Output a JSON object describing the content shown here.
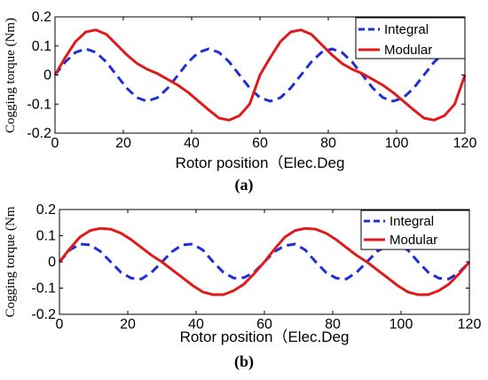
{
  "chart_data": [
    {
      "type": "line",
      "panel": "(a)",
      "xlabel": "Rotor position（Elec.Deg",
      "ylabel": "Cogging torque (Nm)",
      "xlim": [
        0,
        120
      ],
      "ylim": [
        -0.2,
        0.2
      ],
      "xticks": [
        "0",
        "20",
        "40",
        "60",
        "80",
        "100",
        "120"
      ],
      "yticks": [
        "0.2",
        "0.1",
        "0",
        "-0.1",
        "-0.2"
      ],
      "xtick_values": [
        0,
        20,
        40,
        60,
        80,
        100,
        120
      ],
      "ytick_values": [
        0.2,
        0.1,
        0,
        -0.1,
        -0.2
      ],
      "grid": false,
      "legend_position": "top-right",
      "x": [
        0,
        3,
        6,
        9,
        12,
        15,
        18,
        21,
        24,
        27,
        30,
        33,
        36,
        39,
        42,
        45,
        48,
        51,
        54,
        57,
        60,
        63,
        66,
        69,
        72,
        75,
        78,
        81,
        84,
        87,
        90,
        93,
        96,
        99,
        102,
        105,
        108,
        111,
        114,
        117,
        120
      ],
      "series": [
        {
          "name": "Integral",
          "color": "#1f2fd6",
          "style": "dashed",
          "values": [
            0,
            0.045,
            0.078,
            0.09,
            0.078,
            0.045,
            0,
            -0.045,
            -0.078,
            -0.09,
            -0.078,
            -0.045,
            0,
            0.045,
            0.078,
            0.09,
            0.078,
            0.045,
            0,
            -0.045,
            -0.078,
            -0.09,
            -0.078,
            -0.045,
            0,
            0.045,
            0.078,
            0.09,
            0.078,
            0.045,
            0,
            -0.045,
            -0.078,
            -0.09,
            -0.078,
            -0.045,
            0,
            0.045,
            0.078,
            0.09,
            0.078
          ]
        },
        {
          "name": "Modular",
          "color": "#e01a1a",
          "style": "solid",
          "values": [
            0,
            0.06,
            0.115,
            0.148,
            0.155,
            0.14,
            0.105,
            0.07,
            0.04,
            0.02,
            0.005,
            -0.015,
            -0.035,
            -0.06,
            -0.09,
            -0.12,
            -0.148,
            -0.155,
            -0.14,
            -0.1,
            0,
            0.06,
            0.115,
            0.148,
            0.155,
            0.14,
            0.105,
            0.07,
            0.04,
            0.02,
            0.005,
            -0.015,
            -0.035,
            -0.06,
            -0.09,
            -0.12,
            -0.148,
            -0.155,
            -0.14,
            -0.1,
            0
          ]
        }
      ]
    },
    {
      "type": "line",
      "panel": "(b)",
      "xlabel": "Rotor position（Elec.Deg",
      "ylabel": "Cogging torque (Nm",
      "xlim": [
        0,
        120
      ],
      "ylim": [
        -0.2,
        0.2
      ],
      "xticks": [
        "0",
        "20",
        "40",
        "60",
        "80",
        "100",
        "120"
      ],
      "yticks": [
        "0.2",
        "0.1",
        "0",
        "-0.1",
        "-0.2"
      ],
      "xtick_values": [
        0,
        20,
        40,
        60,
        80,
        100,
        120
      ],
      "ytick_values": [
        0.2,
        0.1,
        0,
        -0.1,
        -0.2
      ],
      "grid": false,
      "legend_position": "top-right",
      "x": [
        0,
        3,
        6,
        9,
        12,
        15,
        18,
        21,
        24,
        27,
        30,
        33,
        36,
        39,
        42,
        45,
        48,
        51,
        54,
        57,
        60,
        63,
        66,
        69,
        72,
        75,
        78,
        81,
        84,
        87,
        90,
        93,
        96,
        99,
        102,
        105,
        108,
        111,
        114,
        117,
        120
      ],
      "series": [
        {
          "name": "Integral",
          "color": "#1f2fd6",
          "style": "dashed",
          "values": [
            0,
            0.045,
            0.068,
            0.065,
            0.04,
            0,
            -0.04,
            -0.062,
            -0.065,
            -0.04,
            0,
            0.04,
            0.065,
            0.068,
            0.045,
            0,
            -0.04,
            -0.062,
            -0.06,
            -0.04,
            0,
            0.04,
            0.062,
            0.068,
            0.045,
            0,
            -0.04,
            -0.062,
            -0.065,
            -0.04,
            0,
            0.04,
            0.062,
            0.068,
            0.045,
            0,
            -0.04,
            -0.062,
            -0.065,
            -0.04,
            0
          ]
        },
        {
          "name": "Modular",
          "color": "#e01a1a",
          "style": "solid",
          "values": [
            0,
            0.05,
            0.095,
            0.12,
            0.128,
            0.125,
            0.11,
            0.085,
            0.055,
            0.025,
            0,
            -0.03,
            -0.06,
            -0.09,
            -0.115,
            -0.125,
            -0.125,
            -0.11,
            -0.085,
            -0.045,
            0,
            0.05,
            0.095,
            0.12,
            0.128,
            0.125,
            0.11,
            0.085,
            0.055,
            0.025,
            0,
            -0.03,
            -0.06,
            -0.09,
            -0.115,
            -0.125,
            -0.125,
            -0.11,
            -0.085,
            -0.045,
            0
          ]
        }
      ]
    }
  ],
  "captions": [
    "(a)",
    "(b)"
  ],
  "colors": {
    "axis": "#000000",
    "background": "#ffffff"
  }
}
